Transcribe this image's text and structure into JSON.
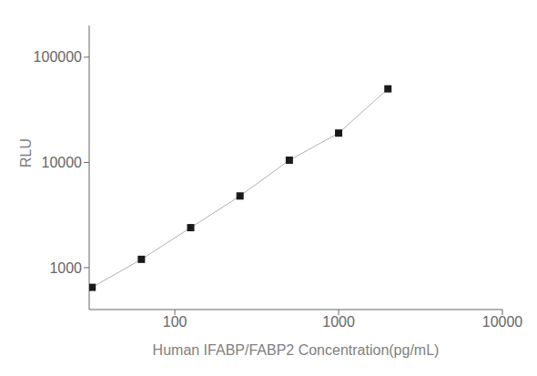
{
  "chart_data": {
    "type": "line",
    "x": [
      31.25,
      62.5,
      125,
      250,
      500,
      1000,
      2000
    ],
    "series": [
      {
        "type": "line",
        "color": "#b0b0b0",
        "values": [
          650,
          1200,
          2400,
          4800,
          10500,
          19000,
          50000
        ]
      },
      {
        "type": "scatter",
        "color": "#1a1a1a",
        "marker": "square",
        "values": [
          650,
          1200,
          2400,
          4800,
          10500,
          19000,
          50000
        ]
      }
    ],
    "xlabel": "Human IFABP/FABP2 Concentration(pg/mL)",
    "ylabel": "RLU",
    "xlim": [
      30,
      10000
    ],
    "ylim": [
      400,
      200000
    ],
    "xticks": [
      100,
      1000,
      10000
    ],
    "yticks": [
      1000,
      10000,
      100000
    ],
    "log": true,
    "grid": false
  }
}
